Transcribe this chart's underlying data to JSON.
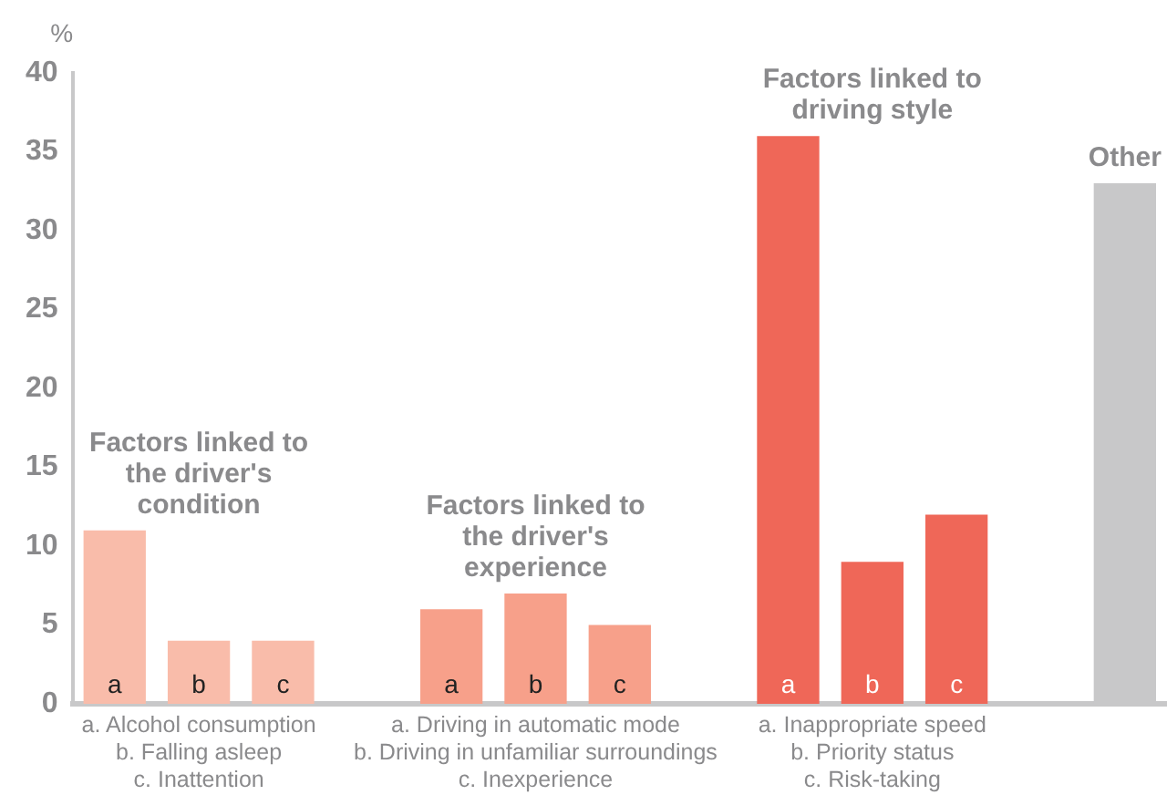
{
  "chart_data": {
    "type": "bar",
    "ylabel": "%",
    "categories": [
      "a",
      "b",
      "c",
      null,
      "a",
      "b",
      "c",
      null,
      "a",
      "b",
      "c",
      null,
      null
    ],
    "series": [
      {
        "name": "Factors linked to the driver's condition",
        "color": "#f9bcaa",
        "values": [
          11,
          4,
          4,
          null,
          null,
          null,
          null,
          null,
          null,
          null,
          null,
          null,
          null
        ]
      },
      {
        "name": "Factors linked to the driver's experience",
        "color": "#f7a08a",
        "values": [
          null,
          null,
          null,
          null,
          6,
          7,
          5,
          null,
          null,
          null,
          null,
          null,
          null
        ]
      },
      {
        "name": "Factors linked to driving style",
        "color": "#ef6758",
        "values": [
          null,
          null,
          null,
          null,
          null,
          null,
          null,
          null,
          36,
          9,
          12,
          null,
          null
        ]
      },
      {
        "name": "Other",
        "color": "#c8c8c9",
        "values": [
          null,
          null,
          null,
          null,
          null,
          null,
          null,
          null,
          null,
          null,
          null,
          null,
          33
        ]
      }
    ],
    "annotations": [
      "a. Alcohol consumption\nb. Falling asleep\nc. Inattention",
      "a. Driving in automatic mode\nb. Driving in unfamiliar surroundings\nc. Inexperience",
      "a. Inappropriate speed\nb. Priority status\nc. Risk-taking"
    ],
    "ylim": [
      0,
      40
    ],
    "yticks": [
      0,
      5,
      10,
      15,
      20,
      25,
      30,
      35,
      40
    ],
    "grid": false,
    "legend": false
  }
}
